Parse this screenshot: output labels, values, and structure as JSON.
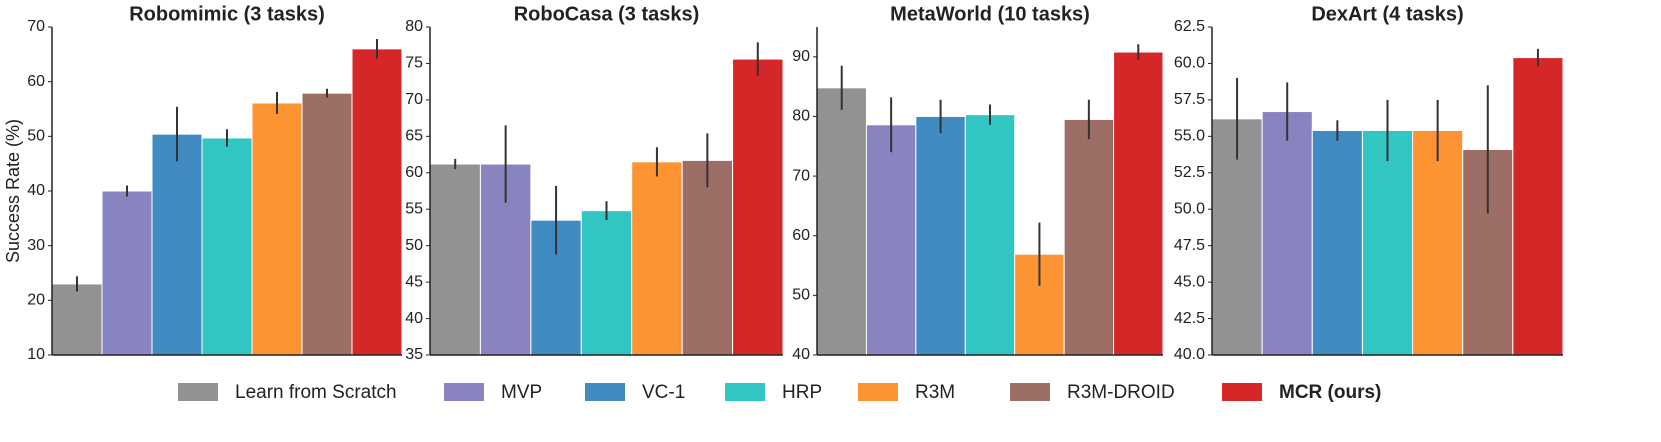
{
  "legend": {
    "entries": [
      {
        "name": "Learn from Scratch",
        "color": "#929292"
      },
      {
        "name": "MVP",
        "color": "#8884c0"
      },
      {
        "name": "VC-1",
        "color": "#418bc3"
      },
      {
        "name": "HRP",
        "color": "#31c6c3"
      },
      {
        "name": "R3M",
        "color": "#fd9433"
      },
      {
        "name": "R3M-DROID",
        "color": "#9d6e66"
      },
      {
        "name": "MCR (ours)",
        "color": "#d62728",
        "bold": true
      }
    ]
  },
  "chart_data": [
    {
      "type": "bar",
      "title": "Robomimic (3 tasks)",
      "ylabel": "Success Rate (%)",
      "ylim": [
        10,
        70
      ],
      "yticks": [
        10,
        20,
        30,
        40,
        50,
        60,
        70
      ],
      "series": [
        {
          "values": [
            23
          ],
          "errors": [
            1.4
          ]
        },
        {
          "values": [
            40
          ],
          "errors": [
            1
          ]
        },
        {
          "values": [
            50.4
          ],
          "errors": [
            5
          ]
        },
        {
          "values": [
            49.7
          ],
          "errors": [
            1.6
          ]
        },
        {
          "values": [
            56.1
          ],
          "errors": [
            2
          ]
        },
        {
          "values": [
            57.9
          ],
          "errors": [
            0.8
          ]
        },
        {
          "values": [
            66
          ],
          "errors": [
            1.8
          ]
        }
      ]
    },
    {
      "type": "bar",
      "title": "RoboCasa (3 tasks)",
      "ylim": [
        35,
        80
      ],
      "yticks": [
        35,
        40,
        45,
        50,
        55,
        60,
        65,
        70,
        75,
        80
      ],
      "series": [
        {
          "values": [
            61.2
          ],
          "errors": [
            0.7
          ]
        },
        {
          "values": [
            61.2
          ],
          "errors": [
            5.3
          ]
        },
        {
          "values": [
            53.5
          ],
          "errors": [
            4.7
          ]
        },
        {
          "values": [
            54.8
          ],
          "errors": [
            1.3
          ]
        },
        {
          "values": [
            61.5
          ],
          "errors": [
            2
          ]
        },
        {
          "values": [
            61.7
          ],
          "errors": [
            3.7
          ]
        },
        {
          "values": [
            75.6
          ],
          "errors": [
            2.3
          ]
        }
      ]
    },
    {
      "type": "bar",
      "title": "MetaWorld (10 tasks)",
      "ylim": [
        40,
        95
      ],
      "yticks": [
        40,
        50,
        60,
        70,
        80,
        90
      ],
      "series": [
        {
          "values": [
            84.8
          ],
          "errors": [
            3.7
          ]
        },
        {
          "values": [
            78.6
          ],
          "errors": [
            4.6
          ]
        },
        {
          "values": [
            80
          ],
          "errors": [
            2.8
          ]
        },
        {
          "values": [
            80.3
          ],
          "errors": [
            1.7
          ]
        },
        {
          "values": [
            56.9
          ],
          "errors": [
            5.3
          ]
        },
        {
          "values": [
            79.5
          ],
          "errors": [
            3.3
          ]
        },
        {
          "values": [
            90.8
          ],
          "errors": [
            1.3
          ]
        }
      ]
    },
    {
      "type": "bar",
      "title": "DexArt (4 tasks)",
      "ylim": [
        40,
        62.5
      ],
      "yticks": [
        {
          "value": 40,
          "label": "40.0"
        },
        42.5,
        {
          "value": 45,
          "label": "45.0"
        },
        47.5,
        {
          "value": 50,
          "label": "50.0"
        },
        52.5,
        {
          "value": 55,
          "label": "55.0"
        },
        57.5,
        {
          "value": 60,
          "label": "60.0"
        },
        62.5
      ],
      "series": [
        {
          "values": [
            56.2
          ],
          "errors": [
            2.8
          ]
        },
        {
          "values": [
            56.7
          ],
          "errors": [
            2
          ]
        },
        {
          "values": [
            55.4
          ],
          "errors": [
            0.7
          ]
        },
        {
          "values": [
            55.4
          ],
          "errors": [
            2.1
          ]
        },
        {
          "values": [
            55.4
          ],
          "errors": [
            2.1
          ]
        },
        {
          "values": [
            54.1
          ],
          "errors": [
            4.4
          ]
        },
        {
          "values": [
            60.4
          ],
          "errors": [
            0.6
          ]
        }
      ]
    }
  ]
}
